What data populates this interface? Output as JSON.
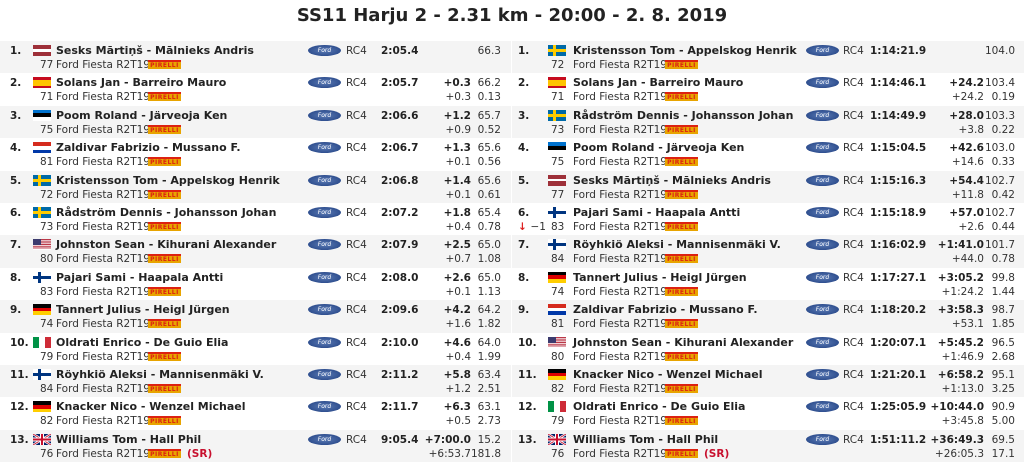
{
  "title": "SS11 Harju 2 - 2.31 km - 20:00 - 2. 8. 2019",
  "colors": {
    "alt_row": "#f4f4f4",
    "sr": "#c8102e",
    "pirelli": "#e8a400"
  },
  "common": {
    "car": "Ford Fiesta R2T19",
    "group": "RC4",
    "tyre": "PIRELLI",
    "make": "Ford"
  },
  "stage_results": [
    {
      "pos": "1.",
      "flag": "LV",
      "name": "Sesks Mārtiņš - Mālnieks Andris",
      "num": "77",
      "time": "2:05.4",
      "diff": "",
      "diff_prev": "",
      "speed": "66.3",
      "sec_km": ""
    },
    {
      "pos": "2.",
      "flag": "ES",
      "name": "Solans Jan - Barreiro Mauro",
      "num": "71",
      "time": "2:05.7",
      "diff": "+0.3",
      "diff_prev": "+0.3",
      "speed": "66.2",
      "sec_km": "0.13"
    },
    {
      "pos": "3.",
      "flag": "EE",
      "name": "Poom Roland - Järveoja Ken",
      "num": "75",
      "time": "2:06.6",
      "diff": "+1.2",
      "diff_prev": "+0.9",
      "speed": "65.7",
      "sec_km": "0.52"
    },
    {
      "pos": "4.",
      "flag": "PY",
      "name": "Zaldivar Fabrizio - Mussano F.",
      "num": "81",
      "time": "2:06.7",
      "diff": "+1.3",
      "diff_prev": "+0.1",
      "speed": "65.6",
      "sec_km": "0.56"
    },
    {
      "pos": "5.",
      "flag": "SE",
      "name": "Kristensson Tom - Appelskog Henrik",
      "num": "72",
      "time": "2:06.8",
      "diff": "+1.4",
      "diff_prev": "+0.1",
      "speed": "65.6",
      "sec_km": "0.61"
    },
    {
      "pos": "6.",
      "flag": "SE",
      "name": "Rådström Dennis - Johansson Johan",
      "num": "73",
      "time": "2:07.2",
      "diff": "+1.8",
      "diff_prev": "+0.4",
      "speed": "65.4",
      "sec_km": "0.78"
    },
    {
      "pos": "7.",
      "flag": "US",
      "name": "Johnston Sean - Kihurani Alexander",
      "num": "80",
      "time": "2:07.9",
      "diff": "+2.5",
      "diff_prev": "+0.7",
      "speed": "65.0",
      "sec_km": "1.08"
    },
    {
      "pos": "8.",
      "flag": "FI",
      "name": "Pajari Sami - Haapala Antti",
      "num": "83",
      "time": "2:08.0",
      "diff": "+2.6",
      "diff_prev": "+0.1",
      "speed": "65.0",
      "sec_km": "1.13"
    },
    {
      "pos": "9.",
      "flag": "DE",
      "name": "Tannert Julius - Heigl Jürgen",
      "num": "74",
      "time": "2:09.6",
      "diff": "+4.2",
      "diff_prev": "+1.6",
      "speed": "64.2",
      "sec_km": "1.82"
    },
    {
      "pos": "10.",
      "flag": "IT",
      "name": "Oldrati Enrico - De Guio Elia",
      "num": "79",
      "time": "2:10.0",
      "diff": "+4.6",
      "diff_prev": "+0.4",
      "speed": "64.0",
      "sec_km": "1.99"
    },
    {
      "pos": "11.",
      "flag": "FI",
      "name": "Röyhkiö Aleksi - Mannisenmäki V.",
      "num": "84",
      "time": "2:11.2",
      "diff": "+5.8",
      "diff_prev": "+1.2",
      "speed": "63.4",
      "sec_km": "2.51"
    },
    {
      "pos": "12.",
      "flag": "DE",
      "name": "Knacker Nico - Wenzel Michael",
      "num": "82",
      "time": "2:11.7",
      "diff": "+6.3",
      "diff_prev": "+0.5",
      "speed": "63.1",
      "sec_km": "2.73"
    },
    {
      "pos": "13.",
      "flag": "GB",
      "name": "Williams Tom - Hall Phil",
      "num": "76",
      "time": "9:05.4",
      "diff": "+7:00.0",
      "diff_prev": "+6:53.7",
      "speed": "15.2",
      "sec_km": "181.8",
      "note": "(SR)"
    }
  ],
  "overall_results": [
    {
      "pos": "1.",
      "flag": "SE",
      "name": "Kristensson Tom - Appelskog Henrik",
      "num": "72",
      "time": "1:14:21.9",
      "diff": "",
      "diff_prev": "",
      "speed": "104.0",
      "sec_km": ""
    },
    {
      "pos": "2.",
      "flag": "ES",
      "name": "Solans Jan - Barreiro Mauro",
      "num": "71",
      "time": "1:14:46.1",
      "diff": "+24.2",
      "diff_prev": "+24.2",
      "speed": "103.4",
      "sec_km": "0.19"
    },
    {
      "pos": "3.",
      "flag": "SE",
      "name": "Rådström Dennis - Johansson Johan",
      "num": "73",
      "time": "1:14:49.9",
      "diff": "+28.0",
      "diff_prev": "+3.8",
      "speed": "103.3",
      "sec_km": "0.22"
    },
    {
      "pos": "4.",
      "flag": "EE",
      "name": "Poom Roland - Järveoja Ken",
      "num": "75",
      "time": "1:15:04.5",
      "diff": "+42.6",
      "diff_prev": "+14.6",
      "speed": "103.0",
      "sec_km": "0.33"
    },
    {
      "pos": "5.",
      "flag": "LV",
      "name": "Sesks Mārtiņš - Mālnieks Andris",
      "num": "77",
      "time": "1:15:16.3",
      "diff": "+54.4",
      "diff_prev": "+11.8",
      "speed": "102.7",
      "sec_km": "0.42"
    },
    {
      "pos": "6.",
      "flag": "FI",
      "name": "Pajari Sami - Haapala Antti",
      "num": "83",
      "time": "1:15:18.9",
      "diff": "+57.0",
      "diff_prev": "+2.6",
      "speed": "102.7",
      "sec_km": "0.44",
      "change": "−1"
    },
    {
      "pos": "7.",
      "flag": "FI",
      "name": "Röyhkiö Aleksi - Mannisenmäki V.",
      "num": "84",
      "time": "1:16:02.9",
      "diff": "+1:41.0",
      "diff_prev": "+44.0",
      "speed": "101.7",
      "sec_km": "0.78"
    },
    {
      "pos": "8.",
      "flag": "DE",
      "name": "Tannert Julius - Heigl Jürgen",
      "num": "74",
      "time": "1:17:27.1",
      "diff": "+3:05.2",
      "diff_prev": "+1:24.2",
      "speed": "99.8",
      "sec_km": "1.44"
    },
    {
      "pos": "9.",
      "flag": "PY",
      "name": "Zaldivar Fabrizio - Mussano F.",
      "num": "81",
      "time": "1:18:20.2",
      "diff": "+3:58.3",
      "diff_prev": "+53.1",
      "speed": "98.7",
      "sec_km": "1.85"
    },
    {
      "pos": "10.",
      "flag": "US",
      "name": "Johnston Sean - Kihurani Alexander",
      "num": "80",
      "time": "1:20:07.1",
      "diff": "+5:45.2",
      "diff_prev": "+1:46.9",
      "speed": "96.5",
      "sec_km": "2.68"
    },
    {
      "pos": "11.",
      "flag": "DE",
      "name": "Knacker Nico - Wenzel Michael",
      "num": "82",
      "time": "1:21:20.1",
      "diff": "+6:58.2",
      "diff_prev": "+1:13.0",
      "speed": "95.1",
      "sec_km": "3.25"
    },
    {
      "pos": "12.",
      "flag": "IT",
      "name": "Oldrati Enrico - De Guio Elia",
      "num": "79",
      "time": "1:25:05.9",
      "diff": "+10:44.0",
      "diff_prev": "+3:45.8",
      "speed": "90.9",
      "sec_km": "5.00"
    },
    {
      "pos": "13.",
      "flag": "GB",
      "name": "Williams Tom - Hall Phil",
      "num": "76",
      "time": "1:51:11.2",
      "diff": "+36:49.3",
      "diff_prev": "+26:05.3",
      "speed": "69.5",
      "sec_km": "17.1",
      "note": "(SR)"
    }
  ]
}
